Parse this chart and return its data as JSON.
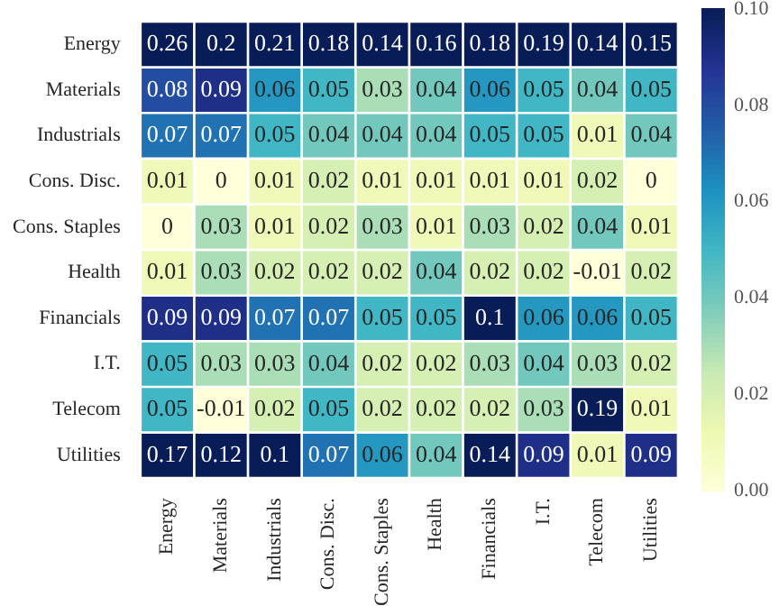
{
  "chart_data": {
    "type": "heatmap",
    "categories": [
      "Energy",
      "Materials",
      "Industrials",
      "Cons. Disc.",
      "Cons. Staples",
      "Health",
      "Financials",
      "I.T.",
      "Telecom",
      "Utilities"
    ],
    "y_categories": [
      "Energy",
      "Materials",
      "Industrials",
      "Cons. Disc.",
      "Cons. Staples",
      "Health",
      "Financials",
      "I.T.",
      "Telecom",
      "Utilities"
    ],
    "cells": [
      [
        0.26,
        0.2,
        0.21,
        0.18,
        0.14,
        0.16,
        0.18,
        0.19,
        0.14,
        0.15
      ],
      [
        0.08,
        0.09,
        0.06,
        0.05,
        0.03,
        0.04,
        0.06,
        0.05,
        0.04,
        0.05
      ],
      [
        0.07,
        0.07,
        0.05,
        0.04,
        0.04,
        0.04,
        0.05,
        0.05,
        0.01,
        0.04
      ],
      [
        0.01,
        0,
        0.01,
        0.02,
        0.01,
        0.01,
        0.01,
        0.01,
        0.02,
        0
      ],
      [
        0,
        0.03,
        0.01,
        0.02,
        0.03,
        0.01,
        0.03,
        0.02,
        0.04,
        0.01
      ],
      [
        0.01,
        0.03,
        0.02,
        0.02,
        0.02,
        0.04,
        0.02,
        0.02,
        -0.01,
        0.02
      ],
      [
        0.09,
        0.09,
        0.07,
        0.07,
        0.05,
        0.05,
        0.1,
        0.06,
        0.06,
        0.05
      ],
      [
        0.05,
        0.03,
        0.03,
        0.04,
        0.02,
        0.02,
        0.03,
        0.04,
        0.03,
        0.02
      ],
      [
        0.05,
        -0.01,
        0.02,
        0.05,
        0.02,
        0.02,
        0.02,
        0.03,
        0.19,
        0.01
      ],
      [
        0.17,
        0.12,
        0.1,
        0.07,
        0.06,
        0.04,
        0.14,
        0.09,
        0.01,
        0.09
      ]
    ],
    "clim": [
      0,
      0.1
    ],
    "cticks": [
      {
        "value": 0,
        "label": "0.00"
      },
      {
        "value": 0.02,
        "label": "0.02"
      },
      {
        "value": 0.04,
        "label": "0.04"
      },
      {
        "value": 0.06,
        "label": "0.06"
      },
      {
        "value": 0.08,
        "label": "0.08"
      },
      {
        "value": 0.1,
        "label": "0.10"
      }
    ],
    "data_labels": true
  }
}
